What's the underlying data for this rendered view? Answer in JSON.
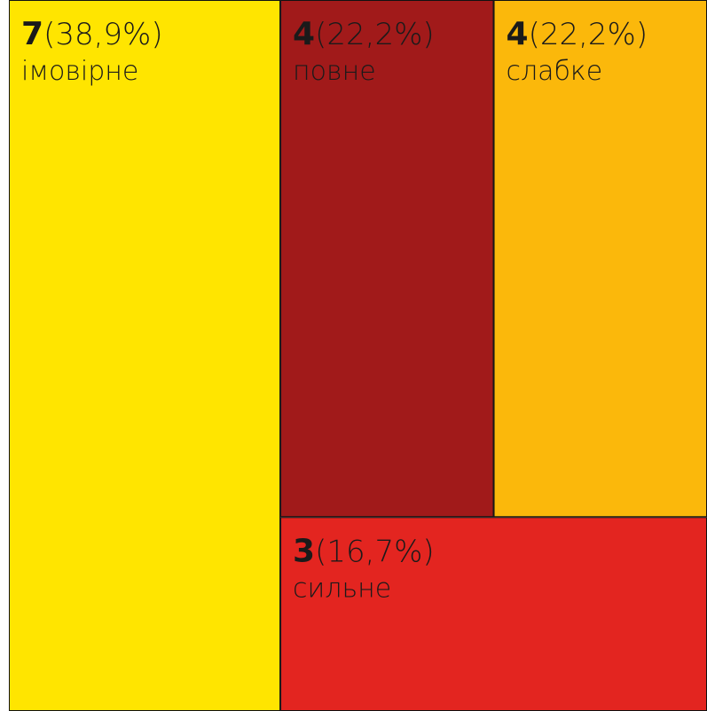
{
  "chart_data": {
    "type": "treemap",
    "categories": [
      "імовірне",
      "повне",
      "слабке",
      "сильне"
    ],
    "values": [
      7,
      4,
      4,
      3
    ],
    "shares": [
      {
        "value": 38.9,
        "label": "(38,9%)"
      },
      {
        "value": 22.2,
        "label": "(22,2%)"
      },
      {
        "value": 22.2,
        "label": "(22,2%)"
      },
      {
        "value": 16.7,
        "label": "(16,7%)"
      }
    ],
    "colors": [
      "#ffe500",
      "#a11a1a",
      "#fbb80b",
      "#e32520"
    ]
  }
}
